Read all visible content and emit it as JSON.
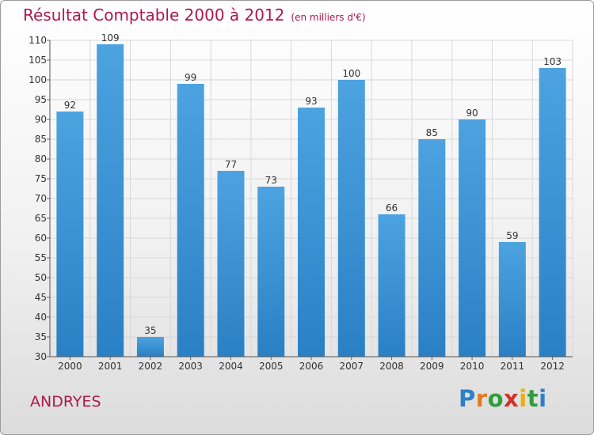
{
  "chart_data": {
    "type": "bar",
    "title": "Résultat Comptable 2000 à 2012",
    "subtitle": "(en milliers d'€)",
    "categories": [
      "2000",
      "2001",
      "2002",
      "2003",
      "2004",
      "2005",
      "2006",
      "2007",
      "2008",
      "2009",
      "2010",
      "2011",
      "2012"
    ],
    "values": [
      92,
      109,
      35,
      99,
      77,
      73,
      93,
      100,
      66,
      85,
      90,
      59,
      103
    ],
    "ylim": [
      30,
      110
    ],
    "yticks": [
      30,
      35,
      40,
      45,
      50,
      55,
      60,
      65,
      70,
      75,
      80,
      85,
      90,
      95,
      100,
      105,
      110
    ],
    "grid": true,
    "bar_color": "#4da3e0",
    "bar_color_dark": "#2a80c4",
    "grid_color": "#d8d8d8"
  },
  "commune": "ANDRYES",
  "brand": {
    "letters": [
      "P",
      "r",
      "o",
      "x",
      "i",
      "t",
      "i"
    ],
    "colors": [
      "#2f7fc9",
      "#e57a1c",
      "#2f9e3e",
      "#d1312b",
      "#e8b20f",
      "#2f9e3e",
      "#2f7fc9"
    ]
  }
}
